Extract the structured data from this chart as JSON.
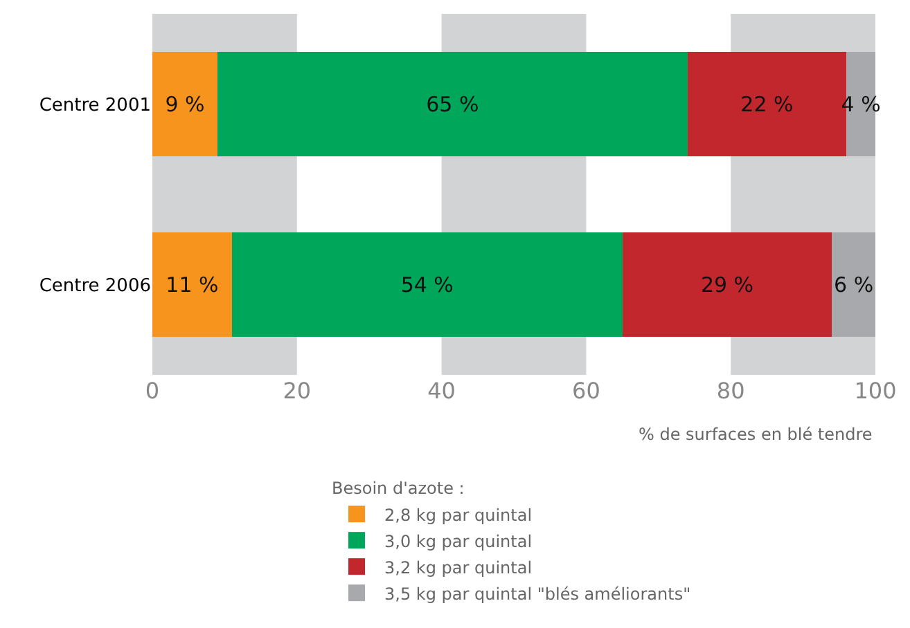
{
  "chart_data": {
    "type": "bar",
    "orientation": "horizontal",
    "stacked": true,
    "categories": [
      "Centre 2001",
      "Centre 2006"
    ],
    "xlabel": "% de surfaces en blé tendre",
    "legend_title": "Besoin d'azote :",
    "series": [
      {
        "name": "2,8 kg par quintal",
        "color": "#f7941d",
        "values": [
          9,
          11
        ],
        "value_labels": [
          "9 %",
          "11 %"
        ]
      },
      {
        "name": "3,0 kg par quintal",
        "color": "#00a65a",
        "values": [
          65,
          54
        ],
        "value_labels": [
          "65 %",
          "54 %"
        ]
      },
      {
        "name": "3,2 kg par quintal",
        "color": "#c1272d",
        "values": [
          22,
          29
        ],
        "value_labels": [
          "22 %",
          "29 %"
        ]
      },
      {
        "name": "3,5 kg par quintal \"blés améliorants\"",
        "color": "#a7a9ac",
        "values": [
          4,
          6
        ],
        "value_labels": [
          "4 %",
          "6 %"
        ]
      }
    ],
    "xlim": [
      0,
      100
    ],
    "xticks": [
      0,
      20,
      40,
      60,
      80,
      100
    ],
    "bands": [
      {
        "axis": "x",
        "from": 0,
        "to": 20,
        "color": "#d1d3d4"
      },
      {
        "axis": "x",
        "from": 40,
        "to": 60,
        "color": "#d1d3d4"
      },
      {
        "axis": "x",
        "from": 80,
        "to": 100,
        "color": "#d1d3d4"
      }
    ],
    "grid": false,
    "legend": "bottom"
  }
}
